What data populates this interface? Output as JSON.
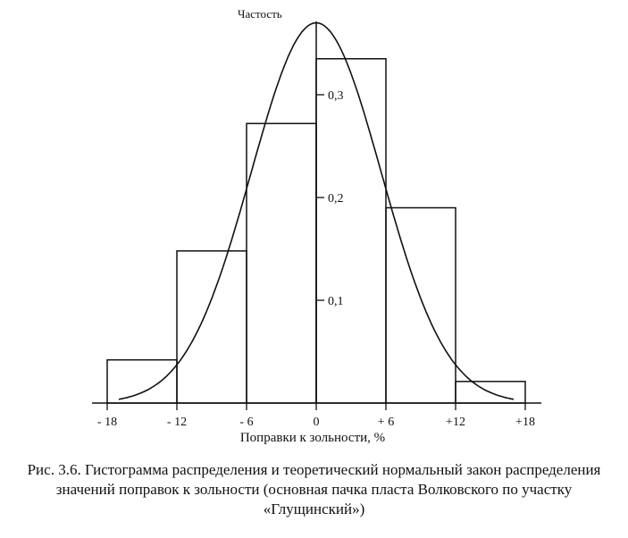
{
  "chart_data": {
    "type": "bar",
    "ylabel": "Частость",
    "xlabel": "Поправки к зольности, %",
    "xlim": [
      -18,
      18
    ],
    "ylim": [
      0,
      0.35
    ],
    "x_ticks": [
      {
        "value": -18,
        "label": "- 18"
      },
      {
        "value": -12,
        "label": "- 12"
      },
      {
        "value": -6,
        "label": "- 6"
      },
      {
        "value": 0,
        "label": "0"
      },
      {
        "value": 6,
        "label": "+ 6"
      },
      {
        "value": 12,
        "label": "+12"
      },
      {
        "value": 18,
        "label": "+18"
      }
    ],
    "y_ticks": [
      {
        "value": 0.1,
        "label": "0,1"
      },
      {
        "value": 0.2,
        "label": "0,2"
      },
      {
        "value": 0.3,
        "label": "0,3"
      }
    ],
    "bins": [
      {
        "from": -18,
        "to": -12,
        "value": 0.042
      },
      {
        "from": -12,
        "to": -6,
        "value": 0.148
      },
      {
        "from": -6,
        "to": 0,
        "value": 0.272
      },
      {
        "from": 0,
        "to": 6,
        "value": 0.335
      },
      {
        "from": 6,
        "to": 12,
        "value": 0.19
      },
      {
        "from": 12,
        "to": 18,
        "value": 0.021
      }
    ],
    "normal_curve": {
      "mean": 0,
      "sd": 5.6,
      "peak": 0.37,
      "x_from": -17,
      "x_to": 17
    }
  },
  "caption": "Рис. 3.6. Гистограмма распределения и теоретический нормальный закон распределения значений поправок к зольности (основная пачка пласта Волковского по участку «Глущинский»)"
}
